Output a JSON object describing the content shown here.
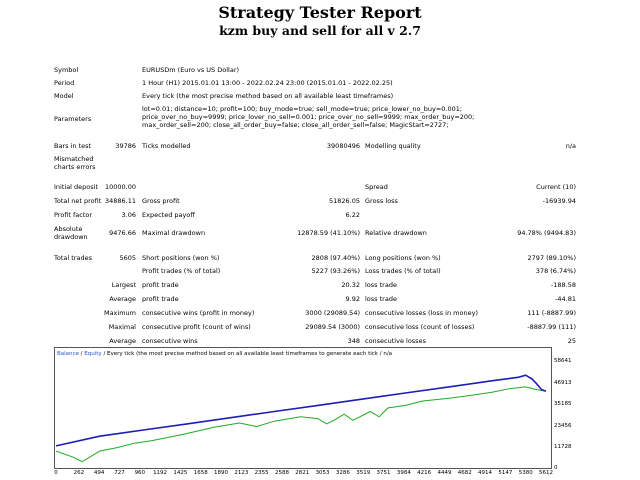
{
  "header": {
    "title": "Strategy Tester Report",
    "subtitle": "kzm buy and sell for all v 2.7"
  },
  "info": {
    "symbol_label": "Symbol",
    "symbol": "EURUSDm (Euro vs US Dollar)",
    "period_label": "Period",
    "period": "1 Hour (H1) 2015.01.01 13:00 - 2022.02.24 23:00 (2015.01.01 - 2022.02.25)",
    "model_label": "Model",
    "model": "Every tick (the most precise method based on all available least timeframes)",
    "params_label": "Parameters",
    "params": "lot=0.01; distance=10; profit=100; buy_mode=true; sell_mode=true; price_lower_no_buy=0.001; price_over_no_buy=9999; price_lover_no_sell=0.001; price_over_no_sell=9999; max_order_buy=200; max_order_sell=200; close_all_order_buy=false; close_all_order_sell=false; MagicStart=2727;"
  },
  "bars": {
    "bars_label": "Bars in test",
    "bars": "39786",
    "ticks_label": "Ticks modelled",
    "ticks": "39080496",
    "quality_label": "Modelling quality",
    "quality": "n/a",
    "mismatch_label": "Mismatched charts errors"
  },
  "stats": {
    "initial_deposit_label": "Initial deposit",
    "initial_deposit": "10000.00",
    "spread_label": "Spread",
    "spread": "Current (10)",
    "net_profit_label": "Total net profit",
    "net_profit": "34886.11",
    "gross_profit_label": "Gross profit",
    "gross_profit": "51826.05",
    "gross_loss_label": "Gross loss",
    "gross_loss": "-16939.94",
    "profit_factor_label": "Profit factor",
    "profit_factor": "3.06",
    "expected_payoff_label": "Expected payoff",
    "expected_payoff": "6.22",
    "abs_dd_label": "Absolute drawdown",
    "abs_dd": "9476.66",
    "max_dd_label": "Maximal drawdown",
    "max_dd": "12878.59 (41.10%)",
    "rel_dd_label": "Relative drawdown",
    "rel_dd": "94.78% (9494.83)"
  },
  "trades": {
    "total_label": "Total trades",
    "total": "5605",
    "short_label": "Short positions (won %)",
    "short": "2808 (97.40%)",
    "long_label": "Long positions (won %)",
    "long": "2797 (89.10%)",
    "profit_trades_label": "Profit trades (% of total)",
    "profit_trades": "5227 (93.26%)",
    "loss_trades_label": "Loss trades (% of total)",
    "loss_trades": "378 (6.74%)",
    "largest": "Largest",
    "average": "Average",
    "maximum": "Maximum",
    "maximal": "Maximal",
    "profit_trade_label": "profit trade",
    "largest_profit": "20.32",
    "average_profit": "9.92",
    "loss_trade_label": "loss trade",
    "largest_loss": "-188.58",
    "average_loss": "-44.81",
    "cw_money_label": "consecutive wins (profit in money)",
    "cw_money": "3000 (29089.54)",
    "cl_money_label": "consecutive losses (loss in money)",
    "cl_money": "111 (-8887.99)",
    "cw_count_label": "consecutive profit (count of wins)",
    "cw_count": "29089.54 (3000)",
    "cl_count_label": "consecutive loss (count of losses)",
    "cl_count": "-8887.99 (111)",
    "acw_label": "consecutive wins",
    "acw": "348",
    "acl_label": "consecutive losses",
    "acl": "25"
  },
  "chart_data": {
    "type": "line",
    "legend_parts": [
      "Balance",
      " / ",
      "Equity",
      " / Every tick (the most precise method based on all available least timeframes to generate each tick",
      " / n/a"
    ],
    "colors": {
      "balance": "#1e1eb4",
      "equity": "#22aa22",
      "legend_link": "#2255cc"
    },
    "yticks": [
      "58641",
      "46913",
      "35185",
      "23456",
      "11728",
      "0"
    ],
    "ylim": [
      0,
      67000
    ],
    "xticks": [
      "0",
      "262",
      "494",
      "727",
      "960",
      "1192",
      "1425",
      "1658",
      "1890",
      "2123",
      "2355",
      "2588",
      "2821",
      "3053",
      "3286",
      "3519",
      "3751",
      "3984",
      "4216",
      "4449",
      "4682",
      "4914",
      "5147",
      "5380",
      "5612"
    ],
    "xlim": [
      0,
      5612
    ],
    "series": [
      {
        "name": "Balance",
        "x": [
          0,
          500,
          1000,
          1500,
          2000,
          2500,
          3000,
          3500,
          4000,
          4500,
          5000,
          5300,
          5380,
          5450,
          5500,
          5560,
          5612
        ],
        "y": [
          12000,
          17500,
          21000,
          24500,
          28000,
          31500,
          35000,
          38500,
          42000,
          45500,
          49000,
          51000,
          52100,
          50000,
          47500,
          44000,
          43000
        ]
      },
      {
        "name": "Equity",
        "x": [
          0,
          200,
          300,
          400,
          500,
          700,
          900,
          1100,
          1300,
          1500,
          1800,
          2100,
          2300,
          2500,
          2800,
          3000,
          3100,
          3200,
          3300,
          3400,
          3600,
          3700,
          3800,
          4000,
          4200,
          4500,
          4800,
          5000,
          5200,
          5380,
          5500,
          5612
        ],
        "y": [
          9000,
          5500,
          3000,
          6000,
          9000,
          11000,
          13500,
          15000,
          17000,
          19000,
          22500,
          25000,
          23000,
          26000,
          28500,
          27500,
          24500,
          27000,
          30000,
          26500,
          31500,
          28500,
          33500,
          35000,
          37500,
          39000,
          41000,
          42500,
          44500,
          45500,
          44000,
          43000
        ]
      }
    ]
  }
}
